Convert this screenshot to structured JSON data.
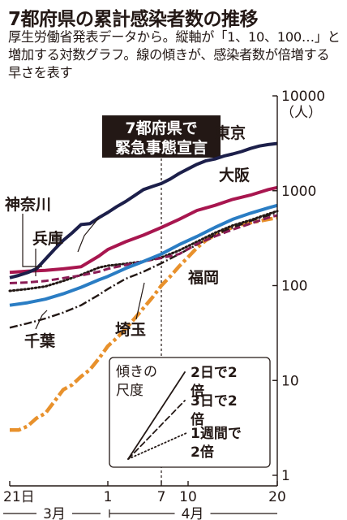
{
  "title": "7都府県の累計感染者数の推移",
  "subtitle": "厚生労働省発表データから。縦軸が「1、10、100…」と増加する対数グラフ。線の傾きが、感染者数が倍増する早さを表す",
  "chart_data": {
    "type": "line",
    "yscale": "log",
    "ylim": [
      1,
      10000
    ],
    "yticks": [
      "1",
      "10",
      "100",
      "1000",
      "10000"
    ],
    "yunit": "（人）",
    "x_range": [
      "3/21",
      "4/20"
    ],
    "xticks": [
      {
        "x": "3/21",
        "label": "21日"
      },
      {
        "x": "4/1",
        "label": "1"
      },
      {
        "x": "4/7",
        "label": "7"
      },
      {
        "x": "4/10",
        "label": "10"
      },
      {
        "x": "4/20",
        "label": "20"
      }
    ],
    "month_labels": [
      {
        "label": "3月",
        "from": "3/21",
        "to": "3/31"
      },
      {
        "label": "4月",
        "from": "4/1",
        "to": "4/20"
      }
    ],
    "annotation": {
      "x": "4/7",
      "lines": [
        "7都府県で",
        "緊急事態宣言"
      ]
    },
    "series": [
      {
        "name": "東京",
        "color": "#1c1f4a",
        "style": "solid",
        "x": [
          "3/21",
          "3/22",
          "3/23",
          "3/24",
          "3/25",
          "3/26",
          "3/27",
          "3/28",
          "3/29",
          "3/30",
          "3/31",
          "4/1",
          "4/2",
          "4/3",
          "4/4",
          "4/5",
          "4/6",
          "4/7",
          "4/8",
          "4/9",
          "4/10",
          "4/11",
          "4/12",
          "4/13",
          "4/14",
          "4/15",
          "4/16",
          "4/17",
          "4/18",
          "4/19",
          "4/20"
        ],
        "y": [
          121,
          128,
          137,
          150,
          190,
          240,
          300,
          360,
          440,
          450,
          520,
          590,
          680,
          770,
          890,
          1030,
          1110,
          1190,
          1330,
          1520,
          1700,
          1900,
          2070,
          2160,
          2320,
          2440,
          2590,
          2790,
          2960,
          3070,
          3150
        ]
      },
      {
        "name": "大阪",
        "color": "#a8164f",
        "style": "solid",
        "x": [
          "3/21",
          "3/23",
          "3/25",
          "3/27",
          "3/29",
          "3/31",
          "4/1",
          "4/3",
          "4/5",
          "4/7",
          "4/9",
          "4/11",
          "4/13",
          "4/15",
          "4/17",
          "4/19",
          "4/20"
        ],
        "y": [
          138,
          142,
          145,
          150,
          158,
          205,
          240,
          290,
          340,
          410,
          500,
          620,
          700,
          810,
          900,
          1030,
          1080
        ]
      },
      {
        "name": "神奈川",
        "color": "#2a7dc4",
        "style": "solid",
        "x": [
          "3/21",
          "3/23",
          "3/25",
          "3/27",
          "3/29",
          "3/31",
          "4/1",
          "4/3",
          "4/5",
          "4/7",
          "4/9",
          "4/11",
          "4/13",
          "4/15",
          "4/17",
          "4/19",
          "4/20"
        ],
        "y": [
          62,
          66,
          72,
          82,
          96,
          115,
          125,
          152,
          180,
          215,
          270,
          330,
          410,
          500,
          580,
          660,
          700
        ]
      },
      {
        "name": "兵庫",
        "color": "#8a1c55",
        "style": "dashed",
        "x": [
          "3/21",
          "3/23",
          "3/25",
          "3/27",
          "3/29",
          "3/31",
          "4/1",
          "4/3",
          "4/5",
          "4/7",
          "4/9",
          "4/11",
          "4/13",
          "4/15",
          "4/17",
          "4/19",
          "4/20"
        ],
        "y": [
          106,
          108,
          112,
          120,
          128,
          140,
          150,
          165,
          180,
          195,
          215,
          275,
          330,
          390,
          450,
          520,
          550
        ]
      },
      {
        "name": "千葉",
        "color": "#231815",
        "style": "dotted",
        "x": [
          "3/21",
          "3/23",
          "3/25",
          "3/27",
          "3/29",
          "3/31",
          "4/1",
          "4/3",
          "4/5",
          "4/7",
          "4/9",
          "4/11",
          "4/13",
          "4/15",
          "4/17",
          "4/19",
          "4/20"
        ],
        "y": [
          88,
          92,
          98,
          112,
          130,
          155,
          162,
          170,
          180,
          198,
          235,
          290,
          360,
          430,
          490,
          570,
          610
        ]
      },
      {
        "name": "埼玉",
        "color": "#231815",
        "style": "long-dash",
        "x": [
          "3/21",
          "3/23",
          "3/25",
          "3/27",
          "3/29",
          "3/31",
          "4/1",
          "4/3",
          "4/5",
          "4/7",
          "4/9",
          "4/11",
          "4/13",
          "4/15",
          "4/17",
          "4/19",
          "4/20"
        ],
        "y": [
          36,
          40,
          45,
          52,
          62,
          80,
          92,
          118,
          140,
          172,
          215,
          270,
          340,
          410,
          480,
          550,
          590
        ]
      },
      {
        "name": "福岡",
        "color": "#e8912c",
        "style": "dash-dot",
        "x": [
          "3/21",
          "3/22",
          "3/23",
          "3/24",
          "3/25",
          "3/26",
          "3/27",
          "3/28",
          "3/29",
          "3/30",
          "3/31",
          "4/1",
          "4/2",
          "4/3",
          "4/4",
          "4/5",
          "4/6",
          "4/7",
          "4/8",
          "4/9",
          "4/10",
          "4/11",
          "4/12",
          "4/13",
          "4/14",
          "4/15",
          "4/16",
          "4/17",
          "4/18",
          "4/19",
          "4/20"
        ],
        "y": [
          3,
          3,
          3.3,
          4,
          4.5,
          6,
          8,
          9,
          11,
          13,
          17,
          23,
          28,
          35,
          45,
          58,
          75,
          100,
          125,
          160,
          200,
          250,
          300,
          340,
          380,
          410,
          440,
          460,
          480,
          500,
          520
        ]
      }
    ],
    "legend": {
      "title": "傾きの尺度",
      "items": [
        {
          "label": "2日で2倍",
          "style": "solid",
          "doubling_days": 2
        },
        {
          "label": "3日で2倍",
          "style": "dashed",
          "doubling_days": 3
        },
        {
          "label": "1週間で2倍",
          "style": "dotted",
          "doubling_days": 7
        }
      ]
    }
  }
}
